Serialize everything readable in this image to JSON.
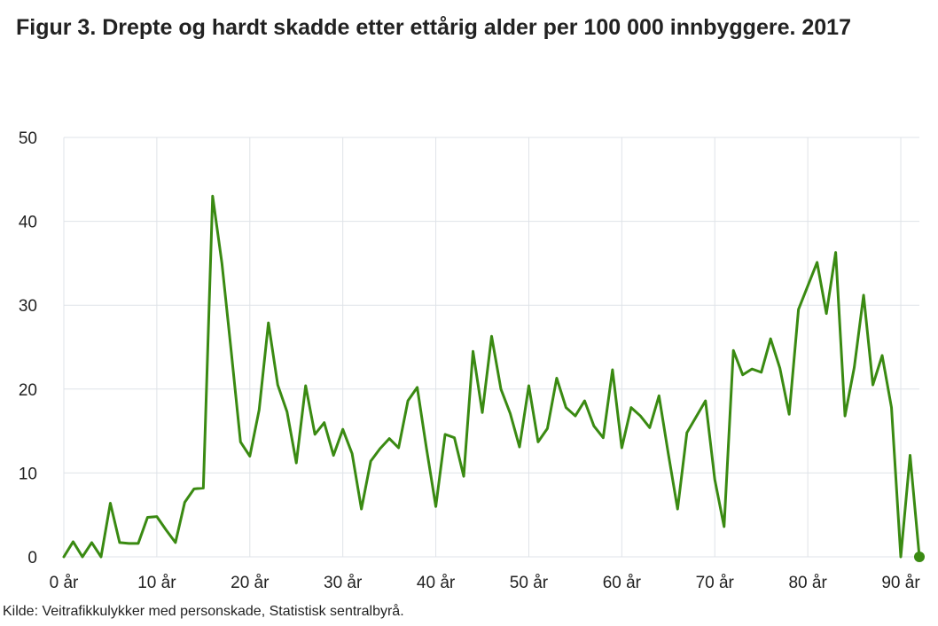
{
  "title": "Figur 3. Drepte og hardt skadde etter ettårig alder per 100 000 innbyggere. 2017",
  "source": "Kilde: Veitrafikkulykker med personskade, Statistisk sentralbyrå.",
  "colors": {
    "line": "#3a8a12",
    "grid": "#dfe3e8",
    "text": "#222222"
  },
  "chart_data": {
    "type": "line",
    "title": "Figur 3. Drepte og hardt skadde etter ettårig alder per 100 000 innbyggere. 2017",
    "xlabel": "",
    "ylabel": "",
    "xlim": [
      0,
      92
    ],
    "ylim": [
      0,
      50
    ],
    "grid": true,
    "x_ticks": [
      0,
      10,
      20,
      30,
      40,
      50,
      60,
      70,
      80,
      90
    ],
    "x_tick_labels": [
      "0 år",
      "10 år",
      "20 år",
      "30 år",
      "40 år",
      "50 år",
      "60 år",
      "70 år",
      "80 år",
      "90 år"
    ],
    "y_ticks": [
      0,
      10,
      20,
      30,
      40,
      50
    ],
    "y_tick_labels": [
      "0",
      "10",
      "20",
      "30",
      "40",
      "50"
    ],
    "x": [
      0,
      1,
      2,
      3,
      4,
      5,
      6,
      7,
      8,
      9,
      10,
      11,
      12,
      13,
      14,
      15,
      16,
      17,
      18,
      19,
      20,
      21,
      22,
      23,
      24,
      25,
      26,
      27,
      28,
      29,
      30,
      31,
      32,
      33,
      34,
      35,
      36,
      37,
      38,
      39,
      40,
      41,
      42,
      43,
      44,
      45,
      46,
      47,
      48,
      49,
      50,
      51,
      52,
      53,
      54,
      55,
      56,
      57,
      58,
      59,
      60,
      61,
      62,
      63,
      64,
      65,
      66,
      67,
      68,
      69,
      70,
      71,
      72,
      73,
      74,
      75,
      76,
      77,
      78,
      79,
      80,
      81,
      82,
      83,
      84,
      85,
      86,
      87,
      88,
      89,
      90,
      91,
      92
    ],
    "series": [
      {
        "values": [
          0,
          1.8,
          0,
          1.7,
          0,
          6.4,
          1.7,
          1.6,
          1.6,
          4.7,
          4.8,
          3.2,
          1.7,
          6.5,
          8.1,
          8.2,
          43,
          35,
          24.5,
          13.7,
          12,
          17.5,
          27.9,
          20.5,
          17.3,
          11.2,
          20.4,
          14.6,
          16,
          12.1,
          15.2,
          12.3,
          5.7,
          11.4,
          12.9,
          14.1,
          13,
          18.6,
          20.2,
          12.9,
          6,
          14.6,
          14.2,
          9.6,
          24.5,
          17.2,
          26.3,
          20,
          17.1,
          13.1,
          20.4,
          13.7,
          15.3,
          21.3,
          17.8,
          16.8,
          18.6,
          15.6,
          14.2,
          22.3,
          13,
          17.8,
          16.8,
          15.4,
          19.2,
          12.3,
          5.7,
          14.8,
          16.7,
          18.6,
          9.2,
          3.6,
          24.6,
          21.7,
          22.4,
          22,
          26,
          22.5,
          17,
          29.5,
          32.3,
          35.1,
          29,
          36.3,
          16.8,
          22.6,
          31.2,
          20.5,
          24,
          17.8,
          0,
          12.1,
          0
        ]
      }
    ]
  }
}
